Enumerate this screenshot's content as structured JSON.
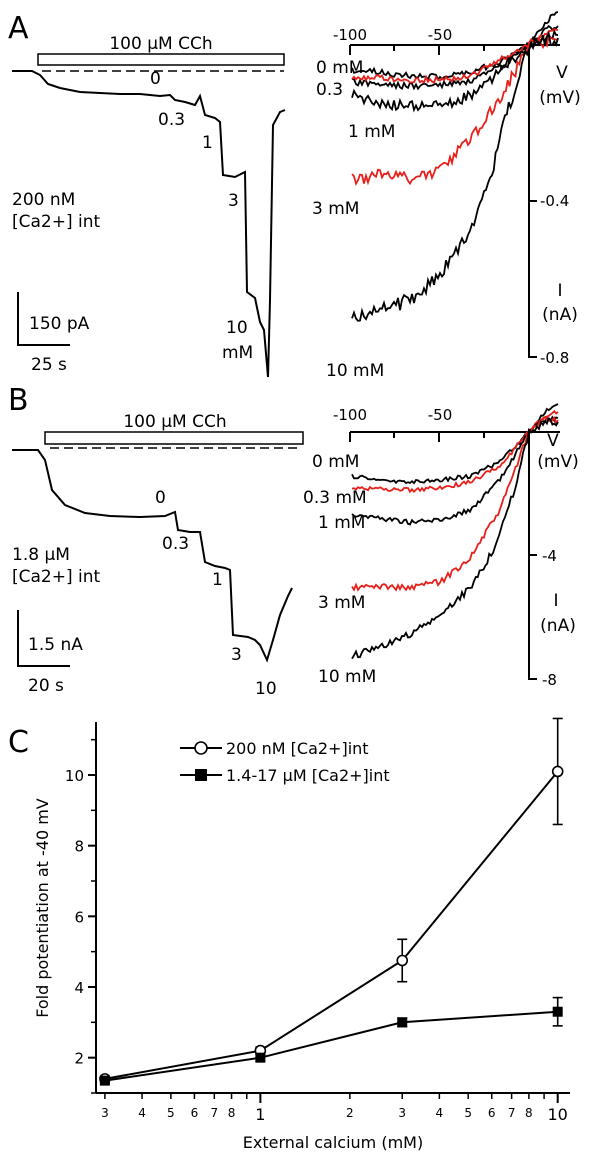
{
  "colors": {
    "black": "#000000",
    "red": "#e8201b"
  },
  "panelA": {
    "letter": "A",
    "bar_label": "100 μM CCh",
    "internal": [
      "200 nM",
      "[Ca2+] int"
    ],
    "scale_y": "150 pA",
    "scale_x": "25 s",
    "step_labels": [
      "0",
      "0.3",
      "1",
      "3",
      "10",
      "mM"
    ],
    "iv": {
      "v_ticks": [
        "-100",
        "-50"
      ],
      "v_label": [
        "V",
        "(mV)"
      ],
      "i_ticks": [
        "-0.4",
        "-0.8"
      ],
      "i_label": [
        "I",
        "(nA)"
      ],
      "curve_labels": [
        "0 mM",
        "0.3",
        "1 mM",
        "3 mM",
        "10 mM"
      ]
    }
  },
  "panelB": {
    "letter": "B",
    "bar_label": "100 μM CCh",
    "internal": [
      "1.8 μM",
      "[Ca2+] int"
    ],
    "scale_y": "1.5 nA",
    "scale_x": "20 s",
    "step_labels": [
      "0",
      "0.3",
      "1",
      "3",
      "10"
    ],
    "iv": {
      "v_ticks": [
        "-100",
        "-50"
      ],
      "v_label": [
        "V",
        "(mV)"
      ],
      "i_ticks": [
        "-4",
        "-8"
      ],
      "i_label": [
        "I",
        "(nA)"
      ],
      "curve_labels": [
        "0 mM",
        "0.3 mM",
        "1 mM",
        "3 mM",
        "10 mM"
      ]
    }
  },
  "panelC": {
    "letter": "C"
  },
  "chart_data": {
    "type": "line",
    "xlabel": "External calcium (mM)",
    "ylabel": "Fold potentiation at -40 mV",
    "xscale": "log",
    "xlim": [
      0.28,
      11
    ],
    "ylim": [
      1,
      11.5
    ],
    "x_tick_labels": [
      "3",
      "4",
      "5",
      "6",
      "7",
      "8",
      "1",
      "2",
      "3",
      "4",
      "5",
      "6",
      "7",
      "8",
      "10"
    ],
    "y_tick_labels": [
      "2",
      "4",
      "6",
      "8",
      "10"
    ],
    "legend_position": "top-center",
    "series": [
      {
        "name": "200 nM [Ca2+]int",
        "marker": "open-circle",
        "x": [
          0.3,
          1,
          3,
          10
        ],
        "y": [
          1.4,
          2.2,
          4.75,
          10.1
        ],
        "err": [
          0.05,
          0.1,
          0.6,
          1.5
        ]
      },
      {
        "name": "1.4-17 μM [Ca2+]int",
        "marker": "filled-square",
        "x": [
          0.3,
          1,
          3,
          10
        ],
        "y": [
          1.35,
          2.0,
          3.0,
          3.3
        ],
        "err": [
          0.05,
          0.1,
          0.12,
          0.4
        ]
      }
    ]
  }
}
